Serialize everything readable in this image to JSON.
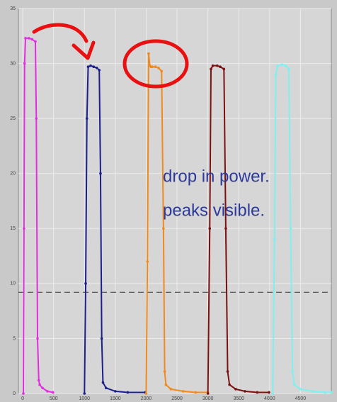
{
  "chart_data": {
    "type": "line",
    "annotations": [
      "drop in power.",
      "peaks visible."
    ],
    "xlim": [
      -70,
      5000
    ],
    "ylim": [
      0,
      35
    ],
    "xticks": [
      0,
      500,
      1000,
      1500,
      2000,
      2500,
      3000,
      3500,
      4000,
      4500
    ],
    "yticks": [
      0,
      5,
      10,
      15,
      20,
      25,
      30,
      35
    ],
    "grid": true,
    "reference_lines": [
      {
        "value": 9.2,
        "style": "dashed"
      }
    ],
    "series": [
      {
        "color": "#e02ee0",
        "x": [
          10,
          20,
          30,
          45,
          100,
          150,
          205,
          220,
          240,
          260,
          275,
          320,
          400,
          490
        ],
        "values": [
          0,
          15,
          30,
          32.3,
          32.3,
          32.2,
          32,
          25,
          5,
          1.2,
          0.8,
          0.5,
          0.2,
          0.1
        ]
      },
      {
        "color": "#1c1f8a",
        "x": [
          1000,
          1020,
          1040,
          1060,
          1100,
          1150,
          1200,
          1240,
          1260,
          1280,
          1300,
          1350,
          1500,
          1700,
          1985
        ],
        "values": [
          0,
          10,
          25,
          29.7,
          29.8,
          29.7,
          29.6,
          29.4,
          20,
          5,
          1,
          0.5,
          0.2,
          0.1,
          0.1
        ]
      },
      {
        "color": "#f08a1c",
        "x": [
          2000,
          2020,
          2040,
          2060,
          2080,
          2100,
          2150,
          2200,
          2250,
          2280,
          2300,
          2320,
          2400,
          2600,
          2800,
          3000
        ],
        "values": [
          0,
          12,
          30.9,
          29.8,
          29.7,
          29.7,
          29.7,
          29.6,
          29.3,
          15,
          2,
          0.8,
          0.4,
          0.2,
          0.1,
          0.1
        ]
      },
      {
        "color": "#7a1010",
        "x": [
          3000,
          3030,
          3050,
          3080,
          3150,
          3200,
          3260,
          3290,
          3320,
          3350,
          3450,
          3600,
          3800,
          3990
        ],
        "values": [
          0,
          15,
          29.5,
          29.8,
          29.8,
          29.7,
          29.5,
          15,
          2,
          0.8,
          0.4,
          0.2,
          0.1,
          0.1
        ]
      },
      {
        "color": "#7ff0f0",
        "x": [
          4050,
          4080,
          4100,
          4130,
          4200,
          4260,
          4310,
          4340,
          4370,
          4400,
          4500,
          4700,
          4900,
          5000
        ],
        "values": [
          0,
          14,
          29,
          29.8,
          29.9,
          29.8,
          29.5,
          15,
          2,
          0.8,
          0.4,
          0.2,
          0.1,
          0.1
        ]
      }
    ]
  }
}
